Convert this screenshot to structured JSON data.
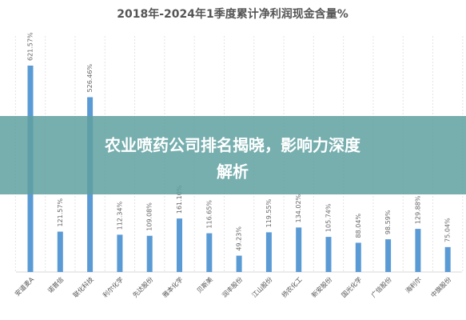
{
  "chart_data": {
    "type": "bar",
    "title": "2018年-2024年1季度累计净利润现金含量%",
    "categories": [
      "安道麦A",
      "诺普信",
      "联化科技",
      "利尔化学",
      "先达股份",
      "雅本化学",
      "贝斯美",
      "润丰股份",
      "江山股份",
      "扬农化工",
      "新安股份",
      "国光化学",
      "广信股份",
      "海利尔",
      "中旗股份"
    ],
    "values": [
      621.57,
      121.57,
      526.46,
      112.34,
      109.08,
      161.1,
      116.65,
      49.23,
      119.55,
      134.02,
      105.74,
      88.04,
      98.59,
      129.88,
      75.04
    ],
    "value_labels": [
      "621.57%",
      "121.57%",
      "526.46%",
      "112.34%",
      "109.08%",
      "161.10%",
      "116.65%",
      "49.23%",
      "119.55%",
      "134.02%",
      "105.74%",
      "88.04%",
      "98.59%",
      "129.88%",
      "75.04%"
    ],
    "color": "#5b9bd5",
    "grid": true
  },
  "banner": {
    "text": [
      "农业喷药公司排名揭晓，影响力深度",
      "解析"
    ]
  }
}
